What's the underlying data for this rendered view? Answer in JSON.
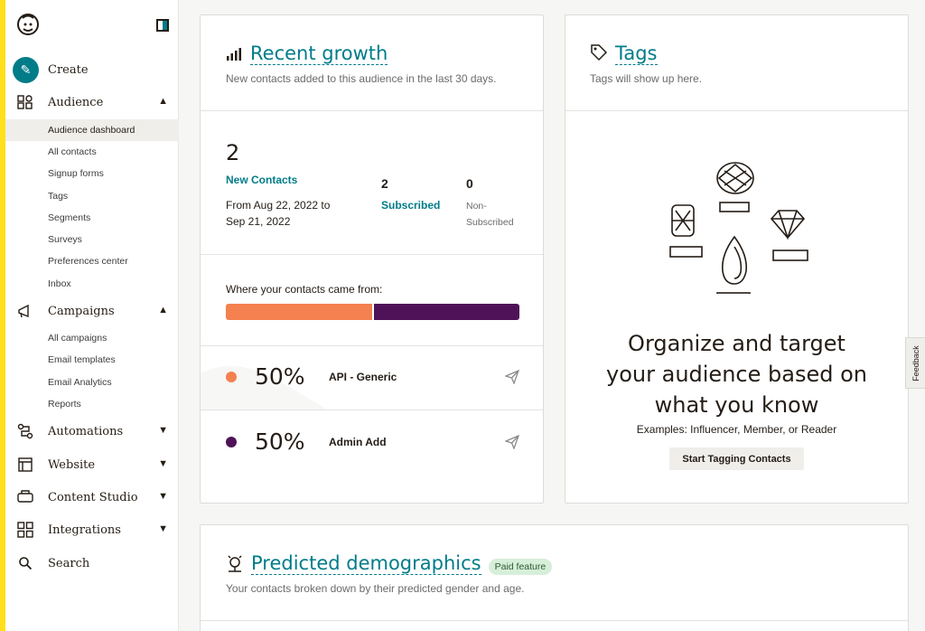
{
  "sidebar": {
    "create": "Create",
    "audience": {
      "label": "Audience",
      "items": [
        "Audience dashboard",
        "All contacts",
        "Signup forms",
        "Tags",
        "Segments",
        "Surveys",
        "Preferences center",
        "Inbox"
      ]
    },
    "campaigns": {
      "label": "Campaigns",
      "items": [
        "All campaigns",
        "Email templates",
        "Email Analytics",
        "Reports"
      ]
    },
    "automations": "Automations",
    "website": "Website",
    "content_studio": "Content Studio",
    "integrations": "Integrations",
    "search": "Search"
  },
  "recent_growth": {
    "title": "Recent growth",
    "subtitle": "New contacts added to this audience in the last 30 days.",
    "new_contacts_count": "2",
    "new_contacts_label": "New Contacts",
    "date_range_line1": "From Aug 22, 2022 to",
    "date_range_line2": "Sep 21, 2022",
    "subscribed_count": "2",
    "subscribed_label": "Subscribed",
    "non_subscribed_count": "0",
    "non_subscribed_line1": "Non-",
    "non_subscribed_line2": "Subscribed",
    "sources_heading": "Where your contacts came from:",
    "sources": [
      {
        "percent": "50%",
        "name": "API - Generic",
        "share": 0.5,
        "color": "#f4814f"
      },
      {
        "percent": "50%",
        "name": "Admin Add",
        "share": 0.5,
        "color": "#4f1259"
      }
    ]
  },
  "tags": {
    "title": "Tags",
    "subtitle": "Tags will show up here.",
    "headline_line1": "Organize and target",
    "headline_line2": "your audience based on",
    "headline_line3": "what you know",
    "examples": "Examples: Influencer, Member, or Reader",
    "button": "Start Tagging Contacts"
  },
  "predicted": {
    "title": "Predicted demographics",
    "badge": "Paid feature",
    "subtitle": "Your contacts broken down by their predicted gender and age."
  },
  "feedback": "Feedback",
  "colors": {
    "accent": "#007c89",
    "brand_yellow": "#ffe01b"
  }
}
